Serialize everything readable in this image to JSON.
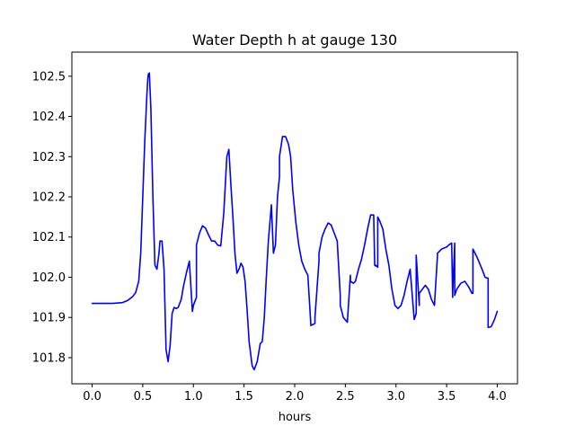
{
  "chart_data": {
    "type": "line",
    "title": "Water Depth h at gauge 130",
    "xlabel": "hours",
    "ylabel": "",
    "xlim": [
      -0.2,
      4.2
    ],
    "ylim": [
      101.735,
      102.56
    ],
    "grid": false,
    "x_ticks": [
      0.0,
      0.5,
      1.0,
      1.5,
      2.0,
      2.5,
      3.0,
      3.5,
      4.0
    ],
    "x_tick_labels": [
      "0.0",
      "0.5",
      "1.0",
      "1.5",
      "2.0",
      "2.5",
      "3.0",
      "3.5",
      "4.0"
    ],
    "y_ticks": [
      101.8,
      101.9,
      102.0,
      102.1,
      102.2,
      102.3,
      102.4,
      102.5
    ],
    "y_tick_labels": [
      "101.8",
      "101.9",
      "102.0",
      "102.1",
      "102.2",
      "102.3",
      "102.4",
      "102.5"
    ],
    "series": [
      {
        "color": "#0000ff",
        "x": [
          0.0,
          0.1,
          0.2,
          0.3,
          0.35,
          0.4,
          0.43,
          0.46,
          0.48,
          0.5,
          0.52,
          0.54,
          0.55,
          0.555,
          0.565,
          0.58,
          0.6,
          0.62,
          0.64,
          0.66,
          0.67,
          0.69,
          0.71,
          0.73,
          0.75,
          0.77,
          0.79,
          0.81,
          0.83,
          0.85,
          0.88,
          0.9,
          0.93,
          0.96,
          0.99,
          1.0,
          1.0,
          1.03,
          1.03,
          1.06,
          1.09,
          1.12,
          1.15,
          1.18,
          1.21,
          1.24,
          1.27,
          1.3,
          1.33,
          1.35,
          1.37,
          1.39,
          1.41,
          1.43,
          1.45,
          1.47,
          1.49,
          1.51,
          1.53,
          1.55,
          1.58,
          1.6,
          1.63,
          1.66,
          1.68,
          1.7,
          1.72,
          1.74,
          1.77,
          1.79,
          1.81,
          1.83,
          1.83,
          1.85,
          1.85,
          1.88,
          1.91,
          1.94,
          1.96,
          1.98,
          2.01,
          2.04,
          2.07,
          2.1,
          2.13,
          2.16,
          2.2,
          2.2,
          2.24,
          2.24,
          2.27,
          2.3,
          2.33,
          2.36,
          2.39,
          2.42,
          2.45,
          2.45,
          2.48,
          2.52,
          2.55,
          2.55,
          2.58,
          2.6,
          2.63,
          2.66,
          2.69,
          2.72,
          2.75,
          2.78,
          2.79,
          2.8,
          2.8,
          2.82,
          2.82,
          2.84,
          2.87,
          2.9,
          2.93,
          2.96,
          2.99,
          3.02,
          3.05,
          3.08,
          3.11,
          3.14,
          3.18,
          3.2,
          3.2,
          3.23,
          3.23,
          3.26,
          3.29,
          3.32,
          3.35,
          3.38,
          3.41,
          3.41,
          3.45,
          3.5,
          3.52,
          3.55,
          3.56,
          3.56,
          3.58,
          3.58,
          3.6,
          3.64,
          3.68,
          3.72,
          3.75,
          3.76,
          3.76,
          3.8,
          3.85,
          3.88,
          3.9,
          3.91,
          3.91,
          3.94,
          3.97,
          4.0
        ],
        "y": [
          101.935,
          101.935,
          101.935,
          101.937,
          101.942,
          101.952,
          101.962,
          101.99,
          102.06,
          102.2,
          102.34,
          102.45,
          102.495,
          102.505,
          102.508,
          102.42,
          102.2,
          102.03,
          102.02,
          102.06,
          102.09,
          102.09,
          102.02,
          101.82,
          101.79,
          101.83,
          101.91,
          101.925,
          101.922,
          101.925,
          101.945,
          101.975,
          102.01,
          102.04,
          101.915,
          101.93,
          101.93,
          101.95,
          102.08,
          102.11,
          102.128,
          102.122,
          102.105,
          102.09,
          102.09,
          102.08,
          102.078,
          102.16,
          102.3,
          102.318,
          102.23,
          102.15,
          102.06,
          102.01,
          102.02,
          102.035,
          102.025,
          101.99,
          101.92,
          101.84,
          101.78,
          101.77,
          101.79,
          101.835,
          101.84,
          101.9,
          102.0,
          102.09,
          102.18,
          102.06,
          102.08,
          102.2,
          102.2,
          102.25,
          102.3,
          102.35,
          102.35,
          102.33,
          102.3,
          102.22,
          102.14,
          102.08,
          102.04,
          102.02,
          102.005,
          101.88,
          101.885,
          101.9,
          102.04,
          102.06,
          102.1,
          102.12,
          102.135,
          102.13,
          102.11,
          102.09,
          101.955,
          101.93,
          101.9,
          101.888,
          102.005,
          101.99,
          101.985,
          101.99,
          102.02,
          102.045,
          102.08,
          102.12,
          102.155,
          102.155,
          102.03,
          102.028,
          102.03,
          102.025,
          102.15,
          102.14,
          102.12,
          102.07,
          102.03,
          101.97,
          101.93,
          101.922,
          101.93,
          101.955,
          101.99,
          102.02,
          101.895,
          101.91,
          102.055,
          101.93,
          101.96,
          101.97,
          101.98,
          101.97,
          101.945,
          101.93,
          102.055,
          102.06,
          102.07,
          102.075,
          102.08,
          102.085,
          101.95,
          101.96,
          102.085,
          101.955,
          101.97,
          101.985,
          101.99,
          101.975,
          101.96,
          101.96,
          102.07,
          102.05,
          102.02,
          102.0,
          101.998,
          101.998,
          101.875,
          101.877,
          101.893,
          101.915
        ]
      }
    ]
  }
}
